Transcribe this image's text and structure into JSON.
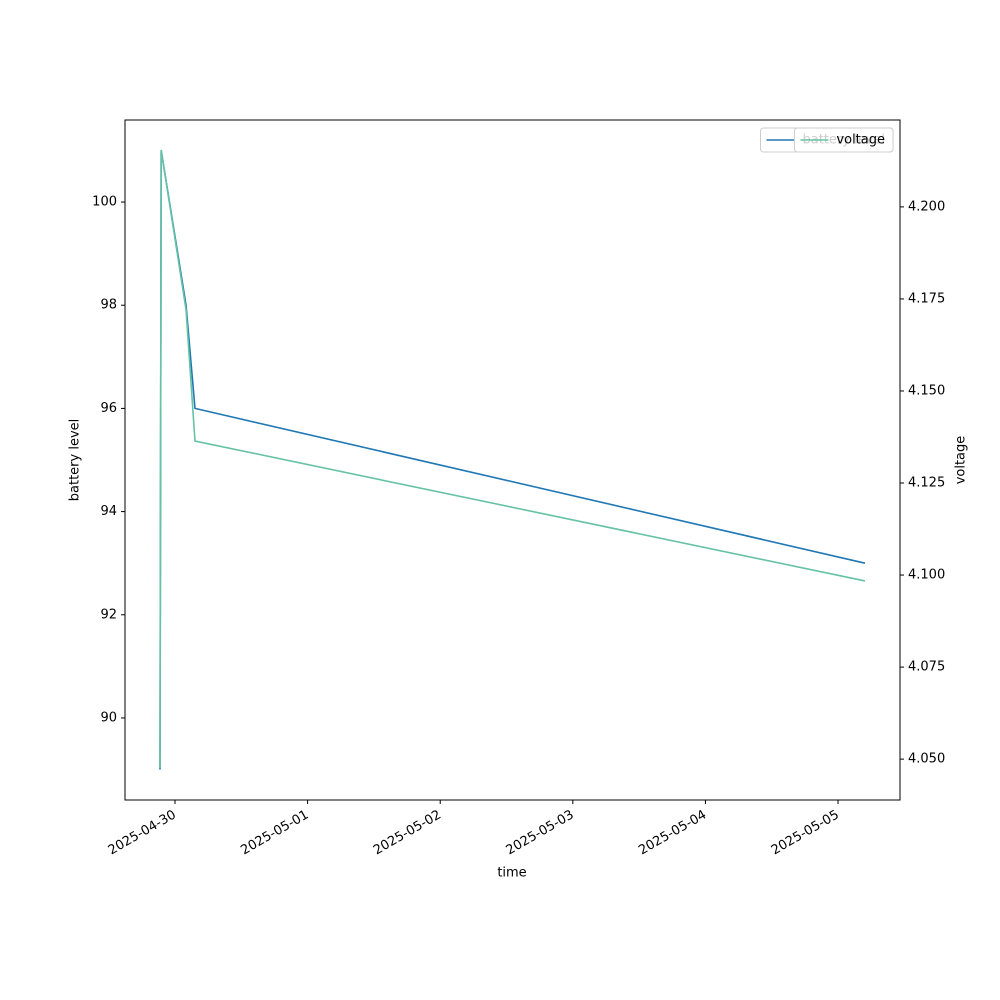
{
  "chart_data": {
    "type": "line",
    "x_label": "time",
    "y_label": "battery level",
    "y2_label": "voltage",
    "x": [
      "2025-04-29T21:17",
      "2025-04-29T21:30",
      "2025-04-30T02:00",
      "2025-04-30T03:37",
      "2025-05-05T04:53"
    ],
    "series": [
      {
        "name": "battery level",
        "color": "#1f77b4",
        "values": [
          89,
          101,
          98,
          96,
          93
        ]
      },
      {
        "name": "voltage",
        "color": "#66c2a5",
        "axis": "y2",
        "values": [
          4.0476,
          4.2155,
          4.172,
          4.1364,
          4.0984
        ]
      }
    ],
    "xlim": [
      "2025-04-29T14:57",
      "2025-05-05T11:13"
    ],
    "xticks": [
      "2025-04-30",
      "2025-05-01",
      "2025-05-02",
      "2025-05-03",
      "2025-05-04",
      "2025-05-05"
    ],
    "ylim": [
      88.41,
      101.59
    ],
    "yticks": [
      90,
      92,
      94,
      96,
      98,
      100
    ],
    "y2lim": [
      4.0389,
      4.2236
    ],
    "y2ticks": [
      {
        "value": 4.05,
        "label": "4.050"
      },
      4.075,
      {
        "value": 4.1,
        "label": "4.100"
      },
      4.125,
      {
        "value": 4.15,
        "label": "4.150"
      },
      4.175,
      {
        "value": 4.2,
        "label": "4.200"
      }
    ],
    "legend": "upper right"
  }
}
